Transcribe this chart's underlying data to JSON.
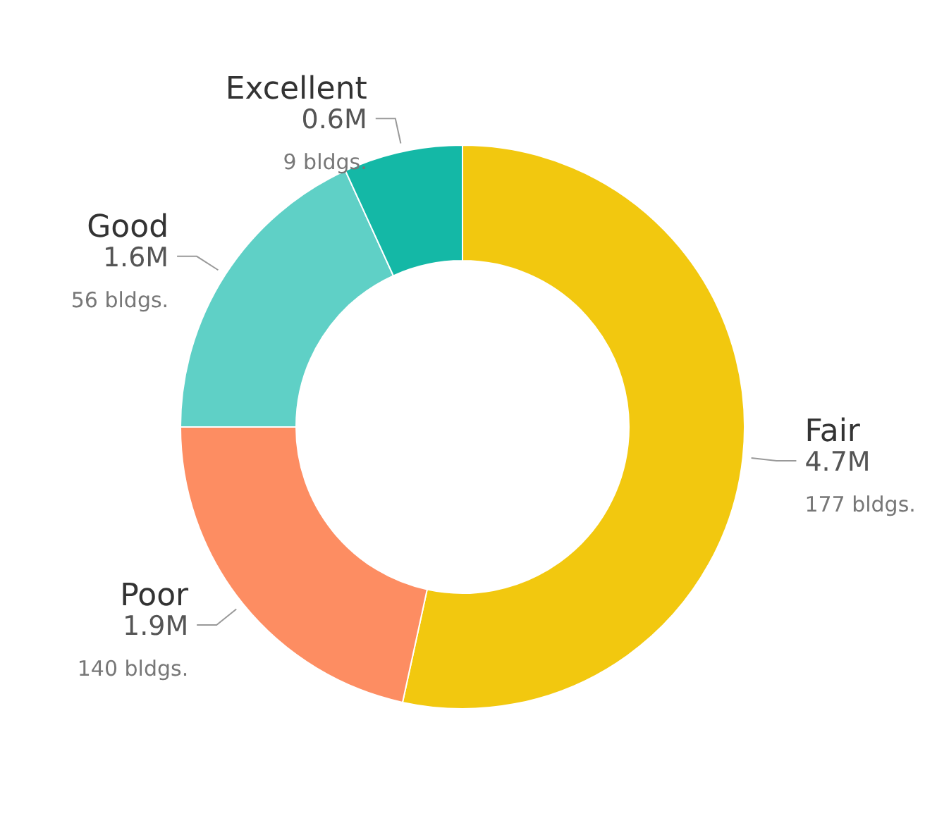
{
  "chart_data": {
    "type": "donut",
    "categories": [
      "Fair",
      "Poor",
      "Good",
      "Excellent"
    ],
    "values": [
      4.7,
      1.9,
      1.6,
      0.6
    ],
    "colors": [
      "#f2c80f",
      "#fd8d62",
      "#5fd0c6",
      "#14b8a6"
    ],
    "value_labels": [
      "4.7M",
      "1.9M",
      "1.6M",
      "0.6M"
    ],
    "annotations": [
      "177 bldgs.",
      "140 bldgs.",
      "56 bldgs.",
      "9 bldgs."
    ]
  }
}
